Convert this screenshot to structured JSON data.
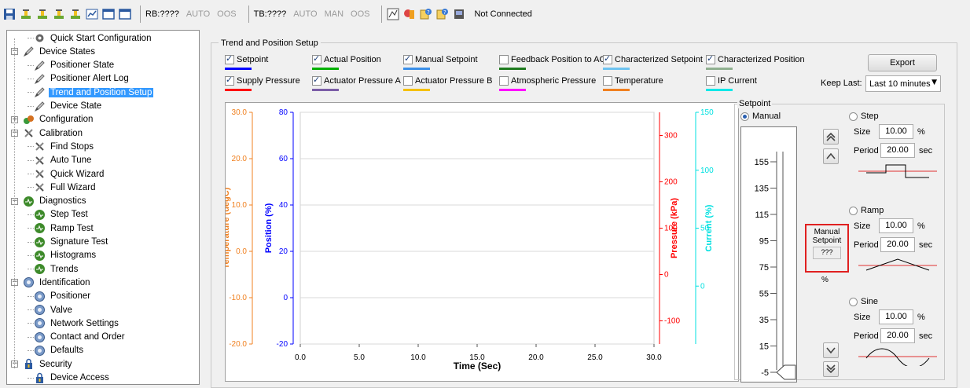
{
  "toolbar": {
    "rb_label": "RB:????",
    "rb_modes": [
      "AUTO",
      "OOS"
    ],
    "tb_label": "TB:????",
    "tb_modes": [
      "AUTO",
      "MAN",
      "OOS"
    ],
    "status": "Not Connected",
    "left_icons": [
      "save-icon",
      "valve-icon",
      "valve-icon",
      "valve-icon",
      "valve-icon",
      "chart-icon",
      "window-icon",
      "window-icon"
    ],
    "right_icons": [
      "graph-icon",
      "tools-icon",
      "help-icon",
      "help-icon",
      "device-icon"
    ]
  },
  "tree": [
    {
      "label": "Quick Start Configuration",
      "level": 1,
      "icon": "gear-icon"
    },
    {
      "label": "Device States",
      "level": 0,
      "icon": "pencil-icon",
      "expander": "−"
    },
    {
      "label": "Positioner State",
      "level": 1,
      "icon": "pencil-icon"
    },
    {
      "label": "Positioner Alert Log",
      "level": 1,
      "icon": "pencil-icon"
    },
    {
      "label": "Trend and Position Setup",
      "level": 1,
      "icon": "pencil-icon",
      "selected": true
    },
    {
      "label": "Device State",
      "level": 1,
      "icon": "pencil-icon"
    },
    {
      "label": "Configuration",
      "level": 0,
      "icon": "config-icon",
      "expander": "+"
    },
    {
      "label": "Calibration",
      "level": 0,
      "icon": "wrench-icon",
      "expander": "−"
    },
    {
      "label": "Find Stops",
      "level": 1,
      "icon": "wrench-icon"
    },
    {
      "label": "Auto Tune",
      "level": 1,
      "icon": "wrench-icon"
    },
    {
      "label": "Quick Wizard",
      "level": 1,
      "icon": "wrench-icon"
    },
    {
      "label": "Full Wizard",
      "level": 1,
      "icon": "wrench-icon"
    },
    {
      "label": "Diagnostics",
      "level": 0,
      "icon": "diagnostic-icon",
      "expander": "−"
    },
    {
      "label": "Step Test",
      "level": 1,
      "icon": "diagnostic-icon"
    },
    {
      "label": "Ramp Test",
      "level": 1,
      "icon": "diagnostic-icon"
    },
    {
      "label": "Signature Test",
      "level": 1,
      "icon": "diagnostic-icon"
    },
    {
      "label": "Histograms",
      "level": 1,
      "icon": "diagnostic-icon"
    },
    {
      "label": "Trends",
      "level": 1,
      "icon": "diagnostic-icon"
    },
    {
      "label": "Identification",
      "level": 0,
      "icon": "id-icon",
      "expander": "−"
    },
    {
      "label": "Positioner",
      "level": 1,
      "icon": "id-icon"
    },
    {
      "label": "Valve",
      "level": 1,
      "icon": "id-icon"
    },
    {
      "label": "Network Settings",
      "level": 1,
      "icon": "id-icon"
    },
    {
      "label": "Contact and Order",
      "level": 1,
      "icon": "id-icon"
    },
    {
      "label": "Defaults",
      "level": 1,
      "icon": "id-icon"
    },
    {
      "label": "Security",
      "level": 0,
      "icon": "lock-icon",
      "expander": "−"
    },
    {
      "label": "Device Access",
      "level": 1,
      "icon": "lock-icon"
    }
  ],
  "panel": {
    "title": "Trend and Position Setup",
    "export_label": "Export",
    "keep_last_label": "Keep Last:",
    "keep_last_value": "Last 10 minutes"
  },
  "checkboxes": [
    {
      "label": "Setpoint",
      "checked": true,
      "color": "#0000ff"
    },
    {
      "label": "Actual Position",
      "checked": true,
      "color": "#00b000"
    },
    {
      "label": "Manual Setpoint",
      "checked": true,
      "color": "#3a8fe8"
    },
    {
      "label": "Feedback Position to AO",
      "checked": false,
      "color": "#1e7a1e"
    },
    {
      "label": "Characterized Setpoint",
      "checked": true,
      "color": "#6ec3f0"
    },
    {
      "label": "Characterized Position",
      "checked": true,
      "color": "#90b090"
    },
    {
      "label": "Supply Pressure",
      "checked": true,
      "color": "#ff0000"
    },
    {
      "label": "Actuator Pressure A",
      "checked": true,
      "color": "#7b5ea7"
    },
    {
      "label": "Actuator Pressure B",
      "checked": false,
      "color": "#f5c000"
    },
    {
      "label": "Atmospheric Pressure",
      "checked": false,
      "color": "#ff00ff"
    },
    {
      "label": "Temperature",
      "checked": false,
      "color": "#f08020"
    },
    {
      "label": "IP Current",
      "checked": false,
      "color": "#00e8e8"
    }
  ],
  "chart_data": {
    "type": "line",
    "xlabel": "Time (Sec)",
    "x_ticks": [
      "0.0",
      "5.0",
      "10.0",
      "15.0",
      "20.0",
      "25.0",
      "30.0"
    ],
    "xlim": [
      0,
      30
    ],
    "series": [],
    "grid": true,
    "axes": [
      {
        "label": "Temperature (degC)",
        "color": "#f08020",
        "ticks": [
          "30.0",
          "20.0",
          "10.0",
          "0.0",
          "-10.0",
          "-20.0"
        ],
        "range": [
          -20,
          30
        ]
      },
      {
        "label": "Position (%)",
        "color": "#0000ff",
        "ticks": [
          "80",
          "60",
          "40",
          "20",
          "0",
          "-20"
        ],
        "range": [
          -20,
          80
        ]
      },
      {
        "label": "Pressure (kPa)",
        "color": "#ff0000",
        "ticks": [
          "300",
          "200",
          "100",
          "0",
          "-100"
        ],
        "range": [
          -150,
          350
        ]
      },
      {
        "label": "Current (%)",
        "color": "#00e0e0",
        "ticks": [
          "150",
          "100",
          "50",
          "0"
        ],
        "range": [
          -50,
          150
        ]
      }
    ]
  },
  "setpoint": {
    "title": "Setpoint",
    "manual_label": "Manual",
    "scale": [
      "155",
      "135",
      "115",
      "95",
      "75",
      "55",
      "35",
      "15",
      "-5"
    ],
    "manual_box_label1": "Manual",
    "manual_box_label2": "Setpoint",
    "manual_value": "???",
    "manual_unit": "%",
    "step": {
      "label": "Step",
      "size_label": "Size",
      "size": "10.00",
      "size_unit": "%",
      "period_label": "Period",
      "period": "20.00",
      "period_unit": "sec"
    },
    "ramp": {
      "label": "Ramp",
      "size_label": "Size",
      "size": "10.00",
      "size_unit": "%",
      "period_label": "Period",
      "period": "20.00",
      "period_unit": "sec"
    },
    "sine": {
      "label": "Sine",
      "size_label": "Size",
      "size": "10.00",
      "size_unit": "%",
      "period_label": "Period",
      "period": "20.00",
      "period_unit": "sec"
    }
  }
}
